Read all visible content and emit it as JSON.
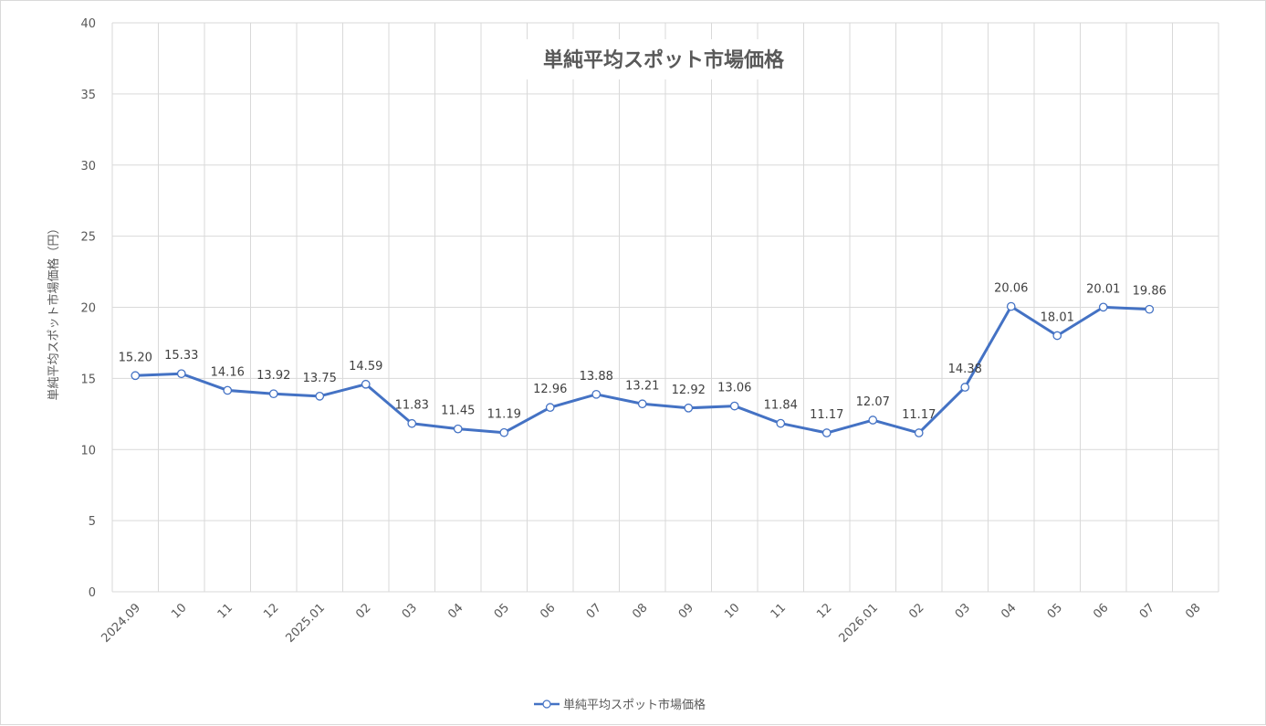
{
  "chart_data": {
    "type": "line",
    "title": "単純平均スポット市場価格",
    "xlabel": "",
    "ylabel": "単純平均スポット市場価格（円）",
    "ylim": [
      0,
      40
    ],
    "yticks": [
      "0",
      "5",
      "10",
      "15",
      "20",
      "25",
      "30",
      "35",
      "40"
    ],
    "categories": [
      "2024.09",
      "10",
      "11",
      "12",
      "2025.01",
      "02",
      "03",
      "04",
      "05",
      "06",
      "07",
      "08",
      "09",
      "10",
      "11",
      "12",
      "2026.01",
      "02",
      "03",
      "04",
      "05",
      "06",
      "07",
      "08"
    ],
    "series": [
      {
        "name": "単純平均スポット市場価格",
        "color": "#4472c4",
        "values": [
          15.2,
          15.33,
          14.16,
          13.92,
          13.75,
          14.59,
          11.83,
          11.45,
          11.19,
          12.96,
          13.88,
          13.21,
          12.92,
          13.06,
          11.84,
          11.17,
          12.07,
          11.17,
          14.38,
          20.06,
          18.01,
          20.01,
          19.86,
          null
        ],
        "labels": [
          "15.20",
          "15.33",
          "14.16",
          "13.92",
          "13.75",
          "14.59",
          "11.83",
          "11.45",
          "11.19",
          "12.96",
          "13.88",
          "13.21",
          "12.92",
          "13.06",
          "11.84",
          "11.17",
          "12.07",
          "11.17",
          "14.38",
          "20.06",
          "18.01",
          "20.01",
          "19.86",
          ""
        ]
      }
    ],
    "grid": true,
    "legend_position": "bottom"
  }
}
